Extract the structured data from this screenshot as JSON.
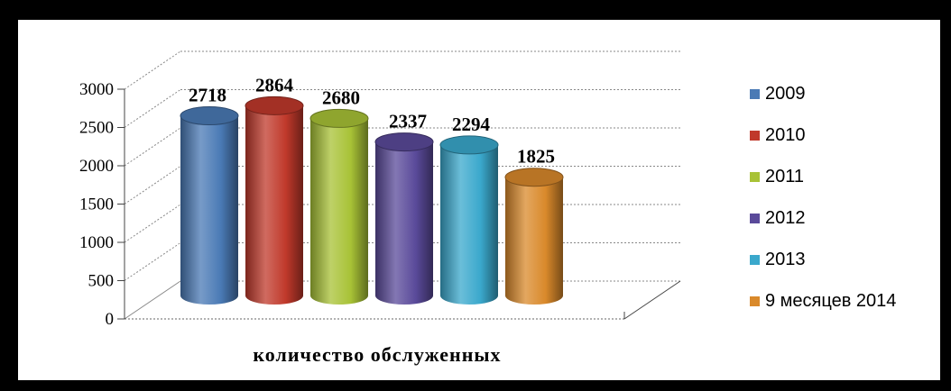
{
  "chart_data": {
    "type": "bar",
    "title": "",
    "xlabel": "количество обслуженных",
    "ylabel": "",
    "ylim": [
      0,
      3000
    ],
    "yticks": [
      0,
      500,
      1000,
      1500,
      2000,
      2500,
      3000
    ],
    "grid": true,
    "legend_position": "right",
    "series": [
      {
        "name": "2009",
        "value": 2718,
        "color": "#4a7ab5"
      },
      {
        "name": "2010",
        "value": 2864,
        "color": "#c0392b"
      },
      {
        "name": "2011",
        "value": 2680,
        "color": "#a8c236"
      },
      {
        "name": "2012",
        "value": 2337,
        "color": "#5a4a9a"
      },
      {
        "name": "2013",
        "value": 2294,
        "color": "#3aa8cc"
      },
      {
        "name": "9 месяцев 2014",
        "value": 1825,
        "color": "#d9892b"
      }
    ]
  }
}
